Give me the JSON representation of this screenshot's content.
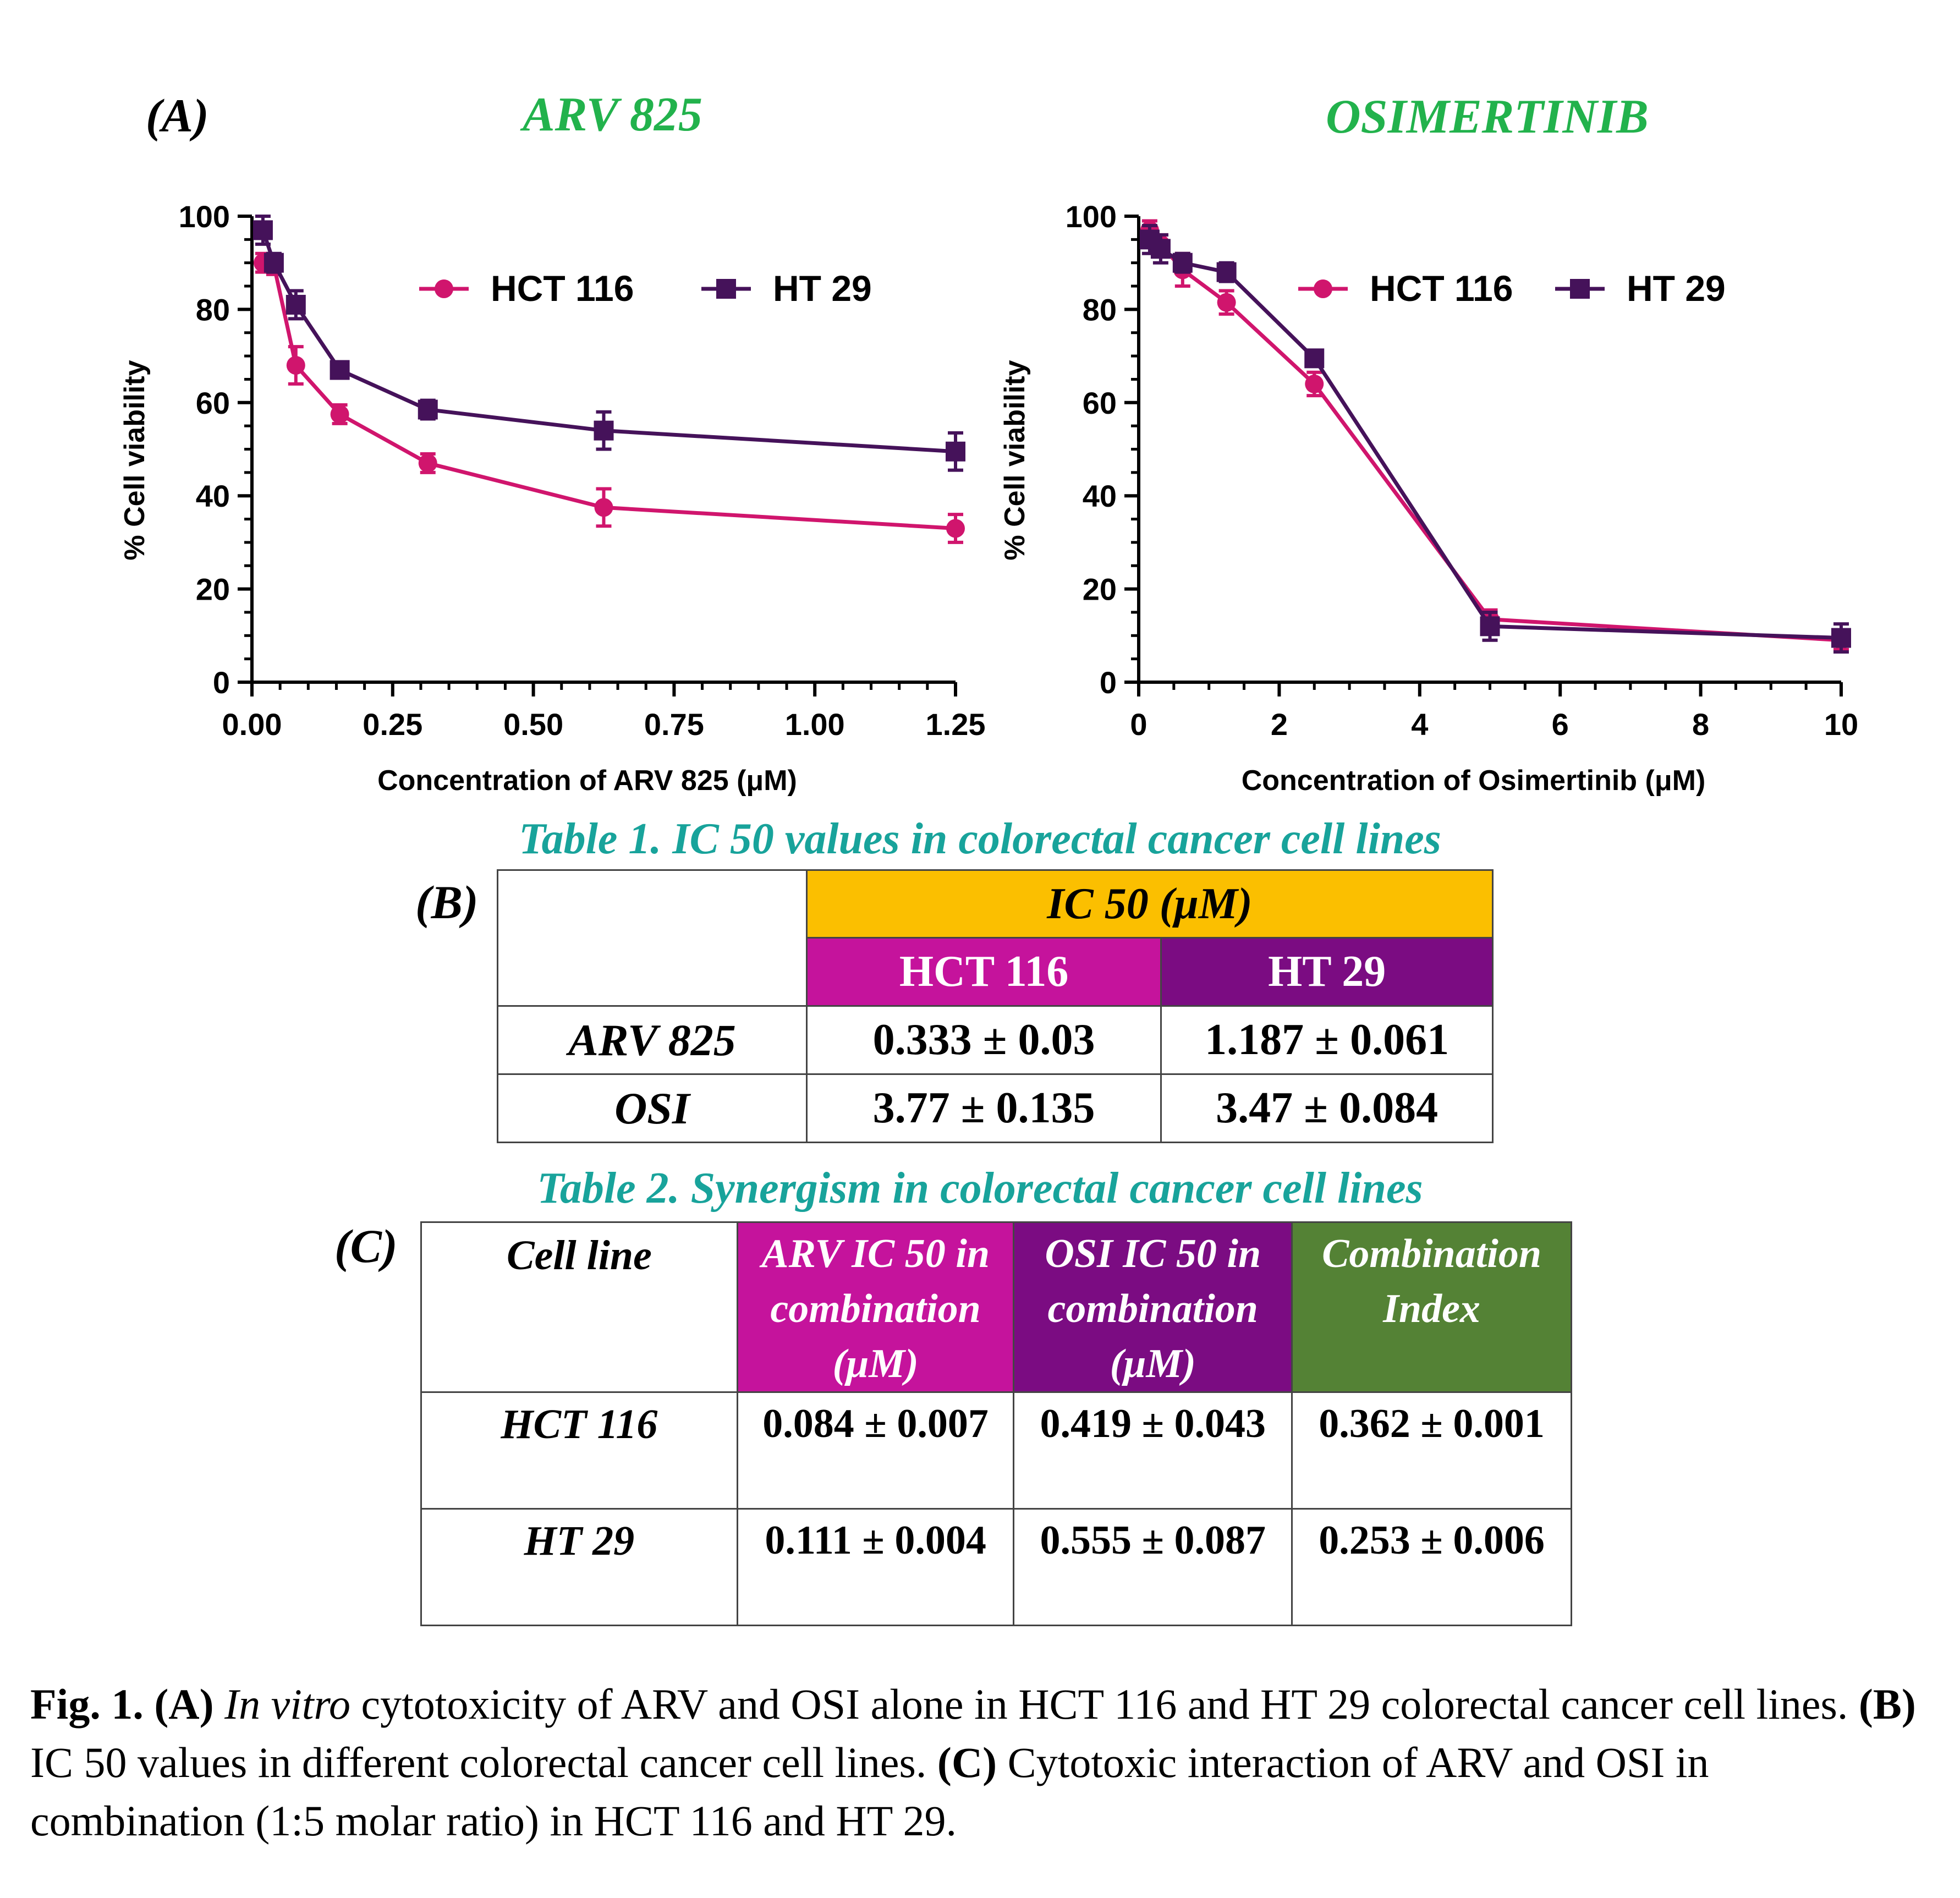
{
  "panel_a_label": "(A)",
  "panel_b_label": "(B)",
  "panel_c_label": "(C)",
  "colors": {
    "hct116": "#d0156d",
    "ht29": "#45125a",
    "title_green": "#22b24c",
    "table_title": "#18a39b",
    "ic50_header": "#fbbf00",
    "hct_header": "#c5139c",
    "ht_header": "#7b0c82",
    "ci_header": "#548235"
  },
  "chart_data": [
    {
      "type": "line",
      "title": "ARV 825",
      "xlabel": "Concentration of ARV 825 (μM)",
      "ylabel": "% Cell viability",
      "xlim": [
        0,
        1.25
      ],
      "ylim": [
        0,
        100
      ],
      "xticks": [
        "0.00",
        "0.25",
        "0.50",
        "0.75",
        "1.00",
        "1.25"
      ],
      "xtick_values": [
        0,
        0.25,
        0.5,
        0.75,
        1.0,
        1.25
      ],
      "yticks": [
        "0",
        "20",
        "40",
        "60",
        "80",
        "100"
      ],
      "ytick_values": [
        0,
        20,
        40,
        60,
        80,
        100
      ],
      "x_minor_step": 0.05,
      "y_minor_step": 5,
      "legend": "top",
      "series": [
        {
          "name": "HCT 116",
          "marker": "circle",
          "x": [
            0.0195,
            0.039,
            0.078,
            0.156,
            0.3125,
            0.625,
            1.25
          ],
          "y": [
            90,
            89.5,
            68,
            57.5,
            47,
            37.5,
            33
          ],
          "err": [
            2,
            2,
            4,
            2,
            2,
            4,
            3
          ]
        },
        {
          "name": "HT 29",
          "marker": "square",
          "x": [
            0.0195,
            0.039,
            0.078,
            0.156,
            0.3125,
            0.625,
            1.25
          ],
          "y": [
            97,
            90,
            81,
            67,
            58.5,
            54,
            49.5
          ],
          "err": [
            3,
            2,
            3,
            1.5,
            2,
            4,
            4
          ]
        }
      ]
    },
    {
      "type": "line",
      "title": "OSIMERTINIB",
      "xlabel": "Concentration of Osimertinib (μM)",
      "ylabel": "% Cell viability",
      "xlim": [
        0,
        10
      ],
      "ylim": [
        0,
        100
      ],
      "xticks": [
        "0",
        "2",
        "4",
        "6",
        "8",
        "10"
      ],
      "xtick_values": [
        0,
        2,
        4,
        6,
        8,
        10
      ],
      "yticks": [
        "0",
        "20",
        "40",
        "60",
        "80",
        "100"
      ],
      "ytick_values": [
        0,
        20,
        40,
        60,
        80,
        100
      ],
      "x_minor_step": 0.5,
      "y_minor_step": 5,
      "legend": "top",
      "series": [
        {
          "name": "HCT 116",
          "marker": "circle",
          "x": [
            0.156,
            0.3125,
            0.625,
            1.25,
            2.5,
            5,
            10
          ],
          "y": [
            97,
            94,
            88.5,
            81.5,
            64,
            13.5,
            9
          ],
          "err": [
            2,
            2,
            3.5,
            2.5,
            2.5,
            2,
            2
          ]
        },
        {
          "name": "HT 29",
          "marker": "square",
          "x": [
            0.156,
            0.3125,
            0.625,
            1.25,
            2.5,
            5,
            10
          ],
          "y": [
            95,
            93,
            90,
            88,
            69.5,
            12,
            9.5
          ],
          "err": [
            3,
            3,
            2,
            2,
            1.5,
            3,
            3
          ]
        }
      ]
    }
  ],
  "table1": {
    "title": "Table 1. IC 50 values in  colorectal cancer cell lines",
    "ic50_header": "IC 50 (μM)",
    "col_hct": "HCT 116",
    "col_ht": "HT 29",
    "rows": [
      {
        "label": "ARV 825",
        "hct": "0.333 ± 0.03",
        "ht": "1.187 ± 0.061"
      },
      {
        "label": "OSI",
        "hct": "3.77 ± 0.135",
        "ht": "3.47 ± 0.084"
      }
    ]
  },
  "table2": {
    "title": "Table 2. Synergism in  colorectal cancer cell lines",
    "col_cell": "Cell line",
    "col_arv": [
      "ARV IC 50 in",
      "combination",
      "(μM)"
    ],
    "col_osi": [
      "OSI  IC 50 in",
      "combination",
      "(μM)"
    ],
    "col_ci": [
      "Combination",
      "Index"
    ],
    "rows": [
      {
        "label": "HCT 116",
        "arv": "0.084 ± 0.007",
        "osi": "0.419 ± 0.043",
        "ci": "0.362 ± 0.001"
      },
      {
        "label": "HT 29",
        "arv": "0.111 ± 0.004",
        "osi": "0.555 ± 0.087",
        "ci": "0.253 ± 0.006"
      }
    ]
  },
  "caption": {
    "fig": "Fig. 1.",
    "a": "(A)",
    "a_italic": "In vitro",
    "a_text": " cytotoxicity of ARV and OSI alone in HCT 116 and HT 29 colorectal cancer cell lines. ",
    "b": "(B)",
    "b_text": " IC 50 values in different colorectal cancer cell lines. ",
    "c": "(C)",
    "c_text": " Cytotoxic interaction of ARV and OSI in combination (1:5 molar ratio) in HCT 116 and HT 29."
  }
}
